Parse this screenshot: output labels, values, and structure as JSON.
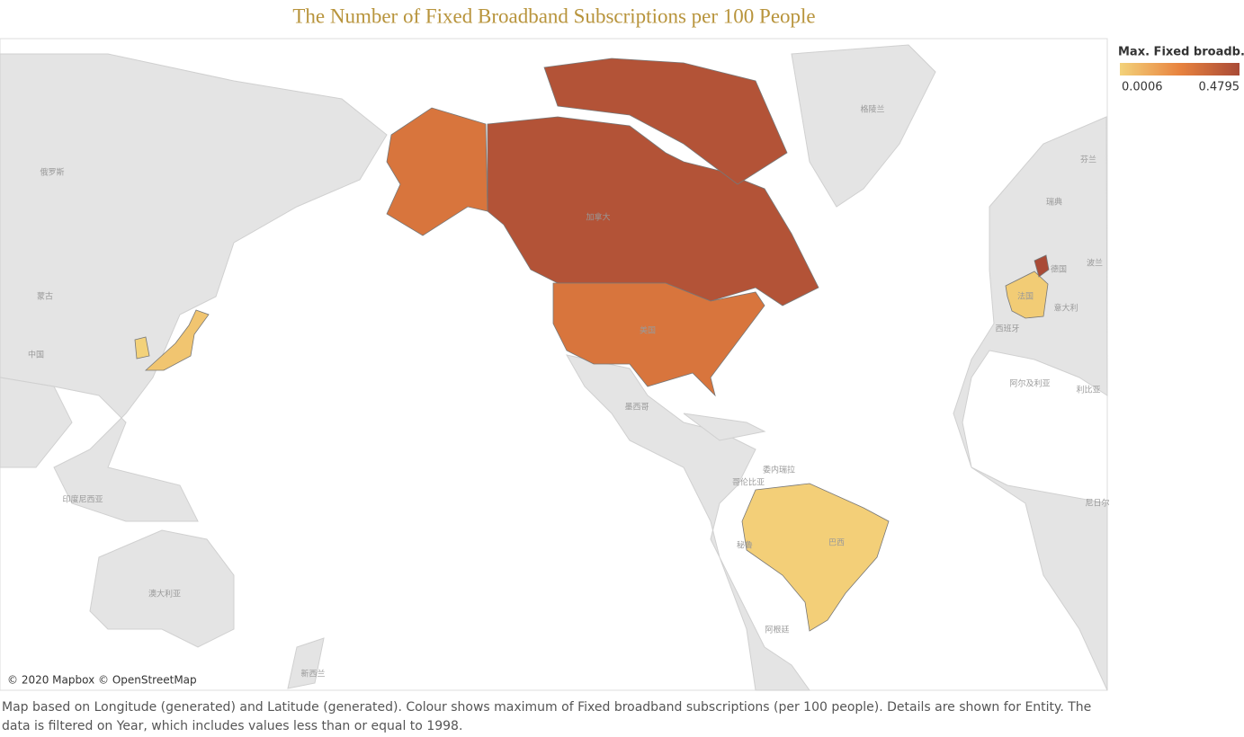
{
  "chart_data": {
    "type": "map",
    "title": "The Number of Fixed Broadband Subscriptions per 100 People",
    "legend": {
      "title": "Max. Fixed broadb..",
      "min": 0.0006,
      "max": 0.4795,
      "colors": [
        "#f3d27a",
        "#e8833f",
        "#a94a36"
      ]
    },
    "values": [
      0.44,
      0.3,
      0.04,
      0.0006,
      0.01,
      0.02,
      0.4795
    ],
    "basemap_labels": [
      "俄罗斯",
      "蒙古",
      "中国",
      "印度尼西亚",
      "澳大利亚",
      "新西兰",
      "格陵兰",
      "加拿大",
      "美国",
      "墨西哥",
      "委内瑞拉",
      "哥伦比亚",
      "秘鲁",
      "巴西",
      "阿根廷",
      "瑞典",
      "芬兰",
      "德国",
      "波兰",
      "法国",
      "意大利",
      "西班牙",
      "阿尔及利亚",
      "利比亚",
      "尼日尔"
    ],
    "attribution": "© 2020 Mapbox © OpenStreetMap",
    "caption": "Map based on Longitude (generated) and Latitude (generated).  Colour shows maximum of Fixed broadband subscriptions (per 100 people).  Details are shown for Entity. The data is filtered on Year, which includes values less than or equal to 1998."
  }
}
